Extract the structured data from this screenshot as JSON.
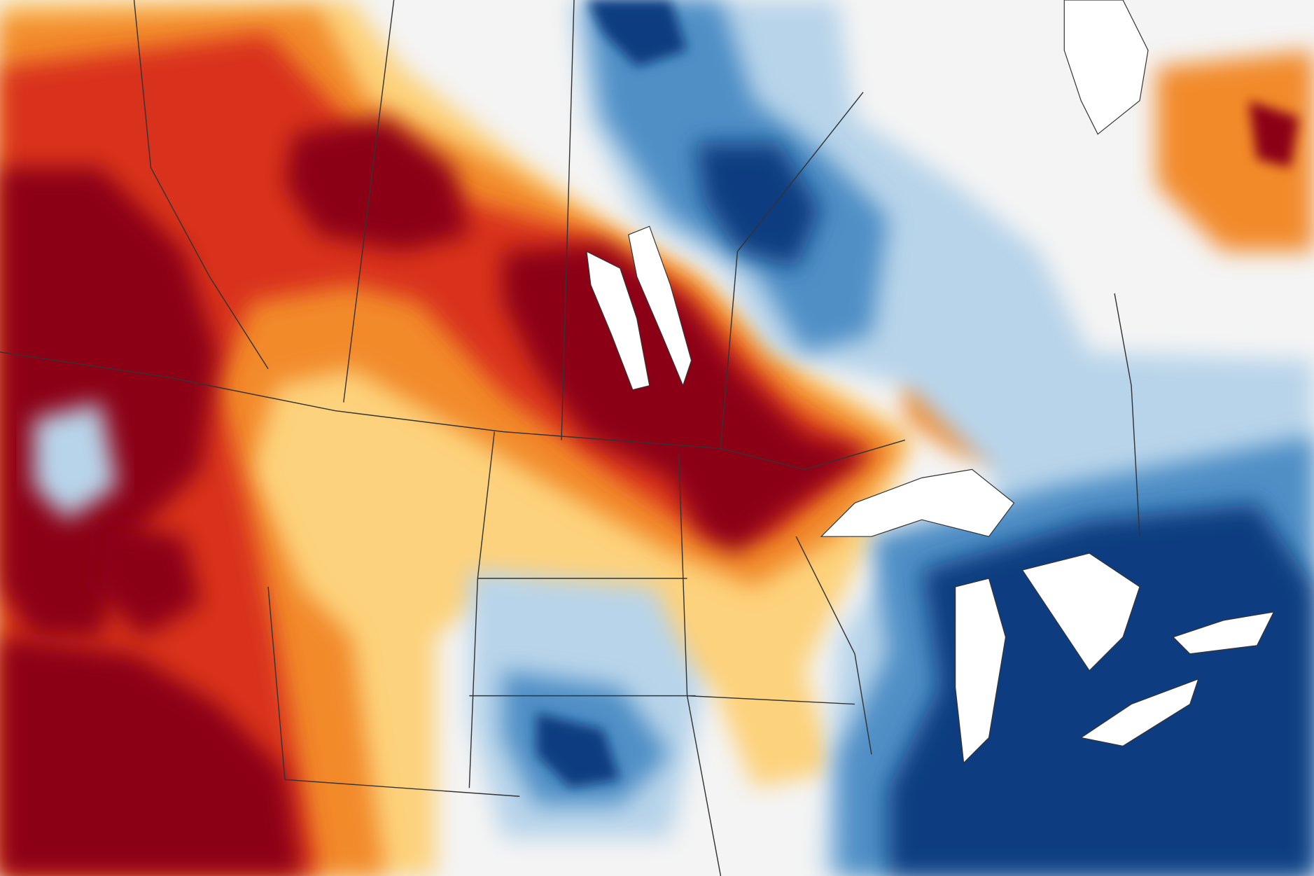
{
  "map": {
    "type": "anomaly-raster",
    "palette": {
      "background": "#f4f4f4",
      "water": "#ffffff",
      "dry_extreme": "#8c0019",
      "dry_strong": "#d9321f",
      "dry_moderate": "#f28a2b",
      "dry_slight": "#fdd27c",
      "wet_slight": "#b8d4ea",
      "wet_moderate": "#4f8fc6",
      "wet_strong": "#0c3e80",
      "borders": "#333333"
    }
  }
}
